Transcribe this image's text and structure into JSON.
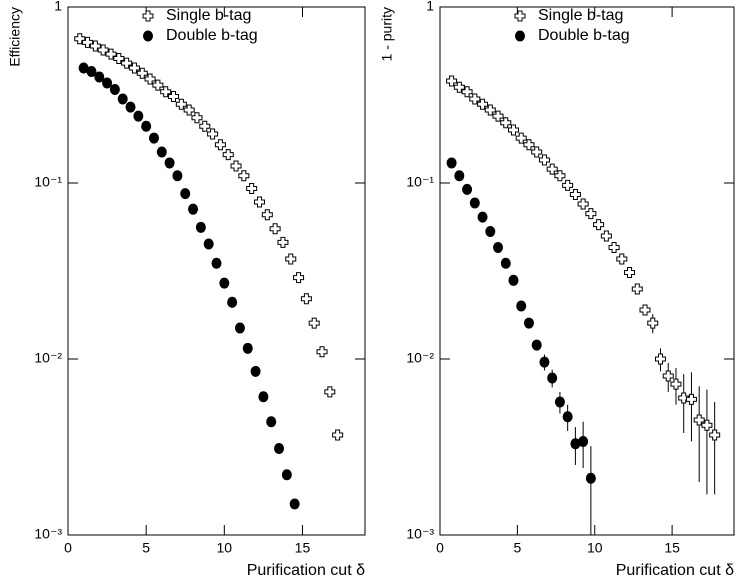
{
  "chart_data": [
    {
      "type": "scatter",
      "y_label": "Efficiency",
      "x_label": "Purification cut δ",
      "log_y": true,
      "legend": "top",
      "xlim": [
        0,
        19
      ],
      "xticks": [
        0,
        5,
        10,
        15
      ],
      "ylim": [
        0.001,
        1
      ],
      "yticks": [
        {
          "value": 0.001,
          "label": "10⁻³"
        },
        {
          "value": 0.01,
          "label": "10⁻²"
        },
        {
          "value": 0.1,
          "label": "10⁻¹"
        },
        1
      ],
      "series": [
        {
          "name": "Single b-tag",
          "marker": "open-cross",
          "color": "#000000",
          "x": [
            0.75,
            1.25,
            1.75,
            2.25,
            2.75,
            3.25,
            3.75,
            4.25,
            4.75,
            5.25,
            5.75,
            6.25,
            6.75,
            7.25,
            7.75,
            8.25,
            8.75,
            9.25,
            9.75,
            10.25,
            10.75,
            11.25,
            11.75,
            12.25,
            12.75,
            13.25,
            13.75,
            14.25,
            14.75,
            15.25,
            15.75,
            16.25,
            16.75,
            17.25
          ],
          "values": [
            0.66,
            0.63,
            0.6,
            0.57,
            0.54,
            0.51,
            0.48,
            0.45,
            0.42,
            0.39,
            0.36,
            0.33,
            0.31,
            0.28,
            0.26,
            0.235,
            0.21,
            0.19,
            0.165,
            0.145,
            0.125,
            0.11,
            0.093,
            0.078,
            0.066,
            0.055,
            0.046,
            0.037,
            0.029,
            0.022,
            0.016,
            0.011,
            0.0065,
            0.0037
          ]
        },
        {
          "name": "Double b-tag",
          "marker": "filled-circle",
          "color": "#000000",
          "x": [
            1,
            1.5,
            2,
            2.5,
            3,
            3.5,
            4,
            4.5,
            5,
            5.5,
            6,
            6.5,
            7,
            7.5,
            8,
            8.5,
            9,
            9.5,
            10,
            10.5,
            11,
            11.5,
            12,
            12.5,
            13,
            13.5,
            14,
            14.5
          ],
          "values": [
            0.45,
            0.43,
            0.4,
            0.37,
            0.34,
            0.3,
            0.27,
            0.24,
            0.21,
            0.18,
            0.15,
            0.13,
            0.11,
            0.087,
            0.071,
            0.056,
            0.045,
            0.035,
            0.027,
            0.021,
            0.015,
            0.0115,
            0.0085,
            0.0061,
            0.0044,
            0.0031,
            0.0022,
            0.0015
          ]
        }
      ]
    },
    {
      "type": "scatter",
      "y_label": "1 - purity",
      "x_label": "Purification cut δ",
      "log_y": true,
      "legend": "top",
      "xlim": [
        0,
        19
      ],
      "xticks": [
        0,
        5,
        10,
        15
      ],
      "ylim": [
        0.001,
        1
      ],
      "yticks": [
        {
          "value": 0.001,
          "label": "10⁻³"
        },
        {
          "value": 0.01,
          "label": "10⁻²"
        },
        {
          "value": 0.1,
          "label": "10⁻¹"
        },
        1
      ],
      "series": [
        {
          "name": "Single b-tag",
          "marker": "open-cross",
          "color": "#000000",
          "x": [
            0.75,
            1.25,
            1.75,
            2.25,
            2.75,
            3.25,
            3.75,
            4.25,
            4.75,
            5.25,
            5.75,
            6.25,
            6.75,
            7.25,
            7.75,
            8.25,
            8.75,
            9.25,
            9.75,
            10.25,
            10.75,
            11.25,
            11.75,
            12.25,
            12.75,
            13.25,
            13.75,
            14.25,
            14.75,
            15.25,
            15.75,
            16.25,
            16.75,
            17.25,
            17.75
          ],
          "values": [
            0.38,
            0.35,
            0.33,
            0.3,
            0.28,
            0.26,
            0.24,
            0.22,
            0.2,
            0.18,
            0.165,
            0.15,
            0.135,
            0.12,
            0.11,
            0.097,
            0.086,
            0.076,
            0.067,
            0.058,
            0.05,
            0.043,
            0.037,
            0.031,
            0.025,
            0.019,
            0.016,
            0.01,
            0.008,
            0.0072,
            0.006,
            0.0059,
            0.0045,
            0.0042,
            0.0037
          ],
          "errors": [
            null,
            null,
            null,
            null,
            null,
            null,
            null,
            null,
            null,
            null,
            null,
            null,
            null,
            null,
            null,
            null,
            null,
            null,
            null,
            null,
            null,
            null,
            null,
            null,
            null,
            null,
            0.002,
            0.0015,
            0.0015,
            0.0017,
            0.0022,
            0.0025,
            0.0025,
            0.0025,
            0.002
          ]
        },
        {
          "name": "Double b-tag",
          "marker": "filled-circle",
          "color": "#000000",
          "x": [
            0.75,
            1.25,
            1.75,
            2.25,
            2.75,
            3.25,
            3.75,
            4.25,
            4.75,
            5.25,
            5.75,
            6.25,
            6.75,
            7.25,
            7.75,
            8.25,
            8.75,
            9.25,
            9.75
          ],
          "values": [
            0.13,
            0.11,
            0.092,
            0.077,
            0.064,
            0.053,
            0.043,
            0.035,
            0.028,
            0.02,
            0.016,
            0.012,
            0.0096,
            0.0078,
            0.0057,
            0.0047,
            0.0033,
            0.0034,
            0.0021
          ],
          "errors": [
            null,
            null,
            null,
            null,
            null,
            null,
            null,
            null,
            null,
            null,
            null,
            null,
            0.001,
            0.0009,
            0.0008,
            0.0008,
            0.0008,
            0.001,
            0.0011
          ]
        }
      ]
    }
  ]
}
